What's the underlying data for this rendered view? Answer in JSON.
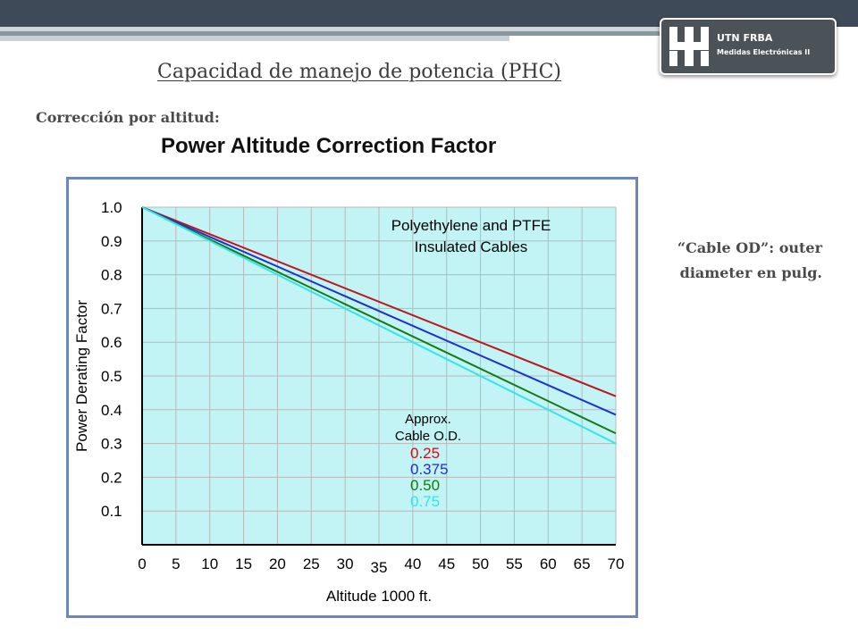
{
  "header": {
    "logo_name": "UTN FRBA",
    "logo_subtitle": "Medidas Electrónicas II"
  },
  "slide": {
    "title": "Capacidad de manejo de potencia (PHC)",
    "subtitle": "Corrección por altitud:",
    "note_line1": "“Cable OD”: outer",
    "note_line2": "diameter en pulg."
  },
  "colors": {
    "plot_background": "#c2f4f6",
    "grid": "#b8b8b8",
    "frame": "#6f86bc"
  },
  "chart_data": {
    "type": "line",
    "title": "Power Altitude Correction Factor",
    "xlabel": "Altitude 1000 ft.",
    "ylabel": "Power Derating Factor",
    "xlim": [
      0,
      70
    ],
    "ylim": [
      0,
      1.0
    ],
    "x_ticks": [
      "0",
      "5",
      "10",
      "15",
      "20",
      "25",
      "30",
      "35",
      "40",
      "45",
      "50",
      "55",
      "60",
      "65",
      "70"
    ],
    "y_ticks": [
      "0.1",
      "0.2",
      "0.3",
      "0.4",
      "0.5",
      "0.6",
      "0.7",
      "0.8",
      "0.9",
      "1.0"
    ],
    "grid": true,
    "annotation": [
      "Polyethylene and PTFE",
      "Insulated Cables"
    ],
    "legend_title": [
      "Approx.",
      "Cable O.D."
    ],
    "series": [
      {
        "name": "0.25",
        "color": "#c0141e",
        "x": [
          0,
          70
        ],
        "y": [
          1.0,
          0.44
        ]
      },
      {
        "name": "0.375",
        "color": "#1f2fd0",
        "x": [
          0,
          70
        ],
        "y": [
          1.0,
          0.385
        ]
      },
      {
        "name": "0.50",
        "color": "#137a16",
        "x": [
          0,
          70
        ],
        "y": [
          1.0,
          0.33
        ]
      },
      {
        "name": "0.75",
        "color": "#38e2ea",
        "x": [
          0,
          70
        ],
        "y": [
          1.0,
          0.3
        ]
      }
    ]
  }
}
